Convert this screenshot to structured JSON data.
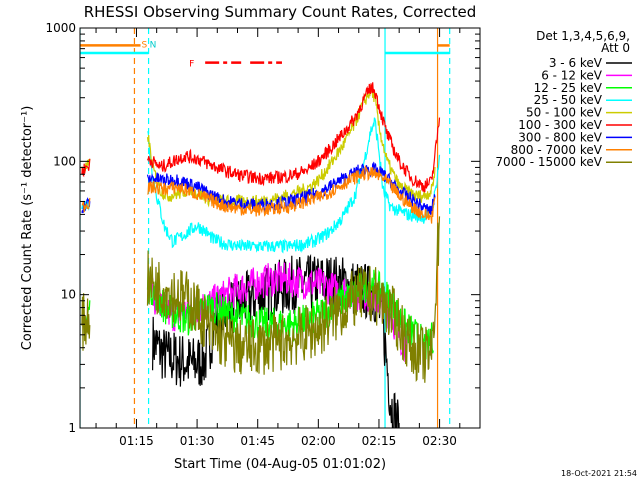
{
  "chart_data": {
    "type": "line",
    "title": "RHESSI Observing Summary Count Rates, Corrected",
    "xlabel": "Start Time (04-Aug-05 01:01:02)",
    "ylabel": "Corrected Count Rate (s⁻¹ detector⁻¹)",
    "yscale": "log",
    "ylim": [
      1,
      1000
    ],
    "xlim_minutes_after_0100": [
      1.03,
      100
    ],
    "x_ticks": [
      {
        "label": "01:15",
        "minute": 15
      },
      {
        "label": "01:30",
        "minute": 30
      },
      {
        "label": "01:45",
        "minute": 45
      },
      {
        "label": "02:00",
        "minute": 60
      },
      {
        "label": "02:15",
        "minute": 75
      },
      {
        "label": "02:30",
        "minute": 90
      }
    ],
    "y_ticks": [
      {
        "label": "1",
        "value": 1
      },
      {
        "label": "10",
        "value": 10
      },
      {
        "label": "100",
        "value": 100
      },
      {
        "label": "1000",
        "value": 1000
      }
    ],
    "legend": {
      "placement": "right",
      "header": [
        "Det 1,3,4,5,6,9,",
        "Att 0"
      ]
    },
    "timestamp": "18-Oct-2021 21:54",
    "series": [
      {
        "name": "3 - 6 keV",
        "color": "#000000",
        "points": [
          [
            19,
            4.5
          ],
          [
            22,
            3.5
          ],
          [
            26,
            3.2
          ],
          [
            29,
            3.0
          ],
          [
            32,
            3.3
          ],
          [
            35,
            7
          ],
          [
            38,
            8
          ],
          [
            42,
            9
          ],
          [
            46,
            10
          ],
          [
            50,
            11
          ],
          [
            54,
            12
          ],
          [
            58,
            12
          ],
          [
            62,
            12.5
          ],
          [
            66,
            12
          ],
          [
            70,
            11
          ],
          [
            74,
            10
          ],
          [
            76,
            6
          ],
          [
            77,
            3
          ],
          [
            78,
            1.5
          ],
          [
            80,
            1.0
          ]
        ]
      },
      {
        "name": "6 - 12 keV",
        "color": "#ff00ff",
        "points": [
          [
            19,
            10
          ],
          [
            21,
            8
          ],
          [
            24,
            7
          ],
          [
            27,
            7.5
          ],
          [
            30,
            8
          ],
          [
            33,
            8.5
          ],
          [
            36,
            9.5
          ],
          [
            40,
            11
          ],
          [
            44,
            12
          ],
          [
            48,
            13
          ],
          [
            52,
            13
          ],
          [
            56,
            12.5
          ],
          [
            60,
            12
          ],
          [
            64,
            11
          ],
          [
            68,
            10.5
          ],
          [
            72,
            10
          ],
          [
            75,
            9
          ],
          [
            78,
            7
          ],
          [
            80,
            5
          ],
          [
            82,
            4
          ]
        ]
      },
      {
        "name": "12 - 25 keV",
        "color": "#00ff00",
        "points": [
          [
            1.5,
            5
          ],
          [
            3.5,
            8
          ],
          [
            17.8,
            12
          ],
          [
            19,
            11
          ],
          [
            22,
            8
          ],
          [
            25,
            7
          ],
          [
            28,
            6.5
          ],
          [
            31,
            8
          ],
          [
            34,
            8
          ],
          [
            38,
            7
          ],
          [
            42,
            6.5
          ],
          [
            46,
            6
          ],
          [
            50,
            6
          ],
          [
            54,
            6
          ],
          [
            58,
            6.5
          ],
          [
            62,
            7.5
          ],
          [
            66,
            9
          ],
          [
            70,
            11
          ],
          [
            73,
            12
          ],
          [
            75,
            11
          ],
          [
            78,
            9
          ],
          [
            81,
            6
          ],
          [
            84,
            5
          ],
          [
            87,
            4
          ],
          [
            88.5,
            5
          ]
        ]
      },
      {
        "name": "25 - 50 keV",
        "color": "#00ffff",
        "points": [
          [
            1.5,
            45
          ],
          [
            3.5,
            50
          ],
          [
            17.8,
            170
          ],
          [
            18.5,
            100
          ],
          [
            20,
            55
          ],
          [
            22,
            32
          ],
          [
            24,
            25
          ],
          [
            26,
            27
          ],
          [
            28,
            30
          ],
          [
            30,
            33
          ],
          [
            32,
            30
          ],
          [
            34,
            26
          ],
          [
            37,
            24
          ],
          [
            41,
            23
          ],
          [
            45,
            23
          ],
          [
            49,
            23
          ],
          [
            53,
            23
          ],
          [
            57,
            24
          ],
          [
            60,
            26
          ],
          [
            63,
            30
          ],
          [
            66,
            38
          ],
          [
            69,
            55
          ],
          [
            71,
            90
          ],
          [
            73,
            170
          ],
          [
            74,
            200
          ],
          [
            75,
            120
          ],
          [
            76,
            60
          ],
          [
            78,
            45
          ],
          [
            82,
            40
          ],
          [
            86,
            38
          ],
          [
            88,
            42
          ],
          [
            89,
            60
          ],
          [
            90,
            110
          ]
        ]
      },
      {
        "name": "50 - 100 keV",
        "color": "#cccc00",
        "points": [
          [
            1.5,
            85
          ],
          [
            3.5,
            95
          ],
          [
            17.8,
            160
          ],
          [
            19,
            90
          ],
          [
            21,
            60
          ],
          [
            23,
            55
          ],
          [
            26,
            58
          ],
          [
            28,
            62
          ],
          [
            30,
            58
          ],
          [
            33,
            52
          ],
          [
            37,
            50
          ],
          [
            41,
            50
          ],
          [
            45,
            50
          ],
          [
            49,
            52
          ],
          [
            53,
            56
          ],
          [
            57,
            62
          ],
          [
            60,
            72
          ],
          [
            63,
            95
          ],
          [
            66,
            130
          ],
          [
            69,
            190
          ],
          [
            71,
            270
          ],
          [
            73,
            340
          ],
          [
            74,
            300
          ],
          [
            75,
            180
          ],
          [
            77,
            100
          ],
          [
            80,
            65
          ],
          [
            84,
            55
          ],
          [
            86,
            55
          ],
          [
            88,
            60
          ],
          [
            89,
            90
          ]
        ]
      },
      {
        "name": "100 - 300 keV",
        "color": "#ff0000",
        "points": [
          [
            1.5,
            85
          ],
          [
            3.5,
            95
          ],
          [
            18,
            105
          ],
          [
            19,
            100
          ],
          [
            21,
            90
          ],
          [
            24,
            100
          ],
          [
            27,
            110
          ],
          [
            30,
            105
          ],
          [
            33,
            95
          ],
          [
            37,
            85
          ],
          [
            41,
            78
          ],
          [
            45,
            75
          ],
          [
            49,
            75
          ],
          [
            53,
            78
          ],
          [
            57,
            85
          ],
          [
            60,
            100
          ],
          [
            63,
            125
          ],
          [
            66,
            160
          ],
          [
            69,
            210
          ],
          [
            71,
            280
          ],
          [
            73,
            360
          ],
          [
            74,
            340
          ],
          [
            75,
            260
          ],
          [
            77,
            160
          ],
          [
            80,
            100
          ],
          [
            83,
            75
          ],
          [
            86,
            65
          ],
          [
            88,
            70
          ],
          [
            89,
            120
          ],
          [
            90,
            220
          ]
        ]
      },
      {
        "name": "300 - 800 keV",
        "color": "#0000ff",
        "points": [
          [
            1.5,
            45
          ],
          [
            3.5,
            50
          ],
          [
            17.8,
            72
          ],
          [
            19,
            75
          ],
          [
            22,
            72
          ],
          [
            25,
            73
          ],
          [
            28,
            68
          ],
          [
            31,
            62
          ],
          [
            34,
            55
          ],
          [
            37,
            50
          ],
          [
            41,
            48
          ],
          [
            45,
            47
          ],
          [
            49,
            48
          ],
          [
            53,
            50
          ],
          [
            57,
            54
          ],
          [
            61,
            60
          ],
          [
            64,
            68
          ],
          [
            67,
            76
          ],
          [
            70,
            85
          ],
          [
            72,
            88
          ],
          [
            74,
            86
          ],
          [
            76,
            80
          ],
          [
            78,
            70
          ],
          [
            80,
            60
          ],
          [
            83,
            52
          ],
          [
            86,
            45
          ],
          [
            88,
            42
          ],
          [
            89,
            60
          ]
        ]
      },
      {
        "name": "800 - 7000 keV",
        "color": "#ff8000",
        "points": [
          [
            1.5,
            45
          ],
          [
            3.5,
            50
          ],
          [
            17.8,
            62
          ],
          [
            19,
            64
          ],
          [
            22,
            62
          ],
          [
            25,
            64
          ],
          [
            28,
            60
          ],
          [
            31,
            55
          ],
          [
            34,
            50
          ],
          [
            37,
            46
          ],
          [
            41,
            44
          ],
          [
            45,
            43
          ],
          [
            49,
            44
          ],
          [
            53,
            46
          ],
          [
            57,
            50
          ],
          [
            61,
            55
          ],
          [
            64,
            62
          ],
          [
            67,
            70
          ],
          [
            70,
            78
          ],
          [
            72,
            82
          ],
          [
            74,
            80
          ],
          [
            76,
            75
          ],
          [
            78,
            65
          ],
          [
            80,
            55
          ],
          [
            83,
            46
          ],
          [
            86,
            40
          ],
          [
            88,
            38
          ],
          [
            89,
            55
          ]
        ]
      },
      {
        "name": "7000 - 15000 keV",
        "color": "#808000",
        "points": [
          [
            1.5,
            6
          ],
          [
            3.5,
            7
          ],
          [
            17.8,
            13
          ],
          [
            19,
            12
          ],
          [
            22,
            11
          ],
          [
            25,
            10
          ],
          [
            28,
            9
          ],
          [
            31,
            7
          ],
          [
            34,
            5
          ],
          [
            37,
            4.5
          ],
          [
            40,
            4
          ],
          [
            44,
            4
          ],
          [
            48,
            4.2
          ],
          [
            52,
            4.5
          ],
          [
            56,
            5
          ],
          [
            60,
            5.5
          ],
          [
            64,
            7
          ],
          [
            68,
            9
          ],
          [
            71,
            10
          ],
          [
            74,
            10
          ],
          [
            77,
            8
          ],
          [
            80,
            6
          ],
          [
            83,
            4
          ],
          [
            86,
            3.5
          ],
          [
            88,
            3.5
          ],
          [
            89,
            10
          ],
          [
            90,
            40
          ]
        ]
      }
    ],
    "annotations": [
      {
        "text": "S",
        "color": "#ff8000",
        "minute": 16
      },
      {
        "text": "N",
        "color": "#00cccc",
        "minute": 18
      },
      {
        "text": "F",
        "color": "#ff0000",
        "minute": 30
      }
    ],
    "vertical_markers": [
      {
        "minute": 1.03,
        "color": "#00ffff",
        "style": "solid"
      },
      {
        "minute": 14.5,
        "color": "#ff8000",
        "style": "dashed"
      },
      {
        "minute": 18,
        "color": "#00ffff",
        "style": "dashed"
      },
      {
        "minute": 76.5,
        "color": "#00ffff",
        "style": "solid"
      },
      {
        "minute": 89.5,
        "color": "#ff8000",
        "style": "solid"
      },
      {
        "minute": 92.5,
        "color": "#00ffff",
        "style": "dashed"
      }
    ],
    "top_bars": [
      {
        "color": "#ff8000",
        "from": 1.03,
        "to": 16,
        "level": 740
      },
      {
        "color": "#00ffff",
        "from": 1.03,
        "to": 18,
        "level": 650
      },
      {
        "color": "#00ffff",
        "from": 76.5,
        "to": 92.5,
        "level": 650
      },
      {
        "color": "#ff8000",
        "from": 89.5,
        "to": 92.5,
        "level": 740
      }
    ],
    "flare_bar": {
      "color": "#ff0000",
      "from": 32,
      "to": 51,
      "level": 550
    }
  }
}
